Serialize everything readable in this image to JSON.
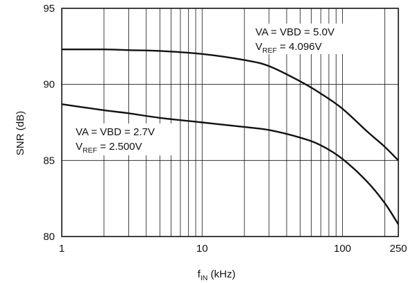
{
  "chart_data": {
    "type": "line",
    "title": "",
    "xlabel": {
      "main": "f",
      "sub": "IN",
      "rest": " (kHz)"
    },
    "ylabel": "SNR (dB)",
    "x_scale": "log",
    "xlim": [
      1,
      250
    ],
    "ylim": [
      80,
      95
    ],
    "x_ticks": [
      1,
      10,
      100,
      250
    ],
    "x_tick_labels": [
      "1",
      "10",
      "100",
      "250"
    ],
    "y_ticks": [
      80,
      85,
      90,
      95
    ],
    "y_tick_labels": [
      "80",
      "85",
      "90",
      "95"
    ],
    "grid": true,
    "series": [
      {
        "annotation": {
          "line1": "VA = VBD = 5.0V",
          "line2_main": "V",
          "line2_sub": "REF",
          "line2_rest": " = 4.096V"
        },
        "x": [
          1,
          2,
          3,
          5,
          10,
          20,
          30,
          50,
          70,
          100,
          150,
          200,
          250
        ],
        "y": [
          92.3,
          92.3,
          92.25,
          92.2,
          92.0,
          91.6,
          91.2,
          90.2,
          89.4,
          88.4,
          86.9,
          85.9,
          85.0
        ]
      },
      {
        "annotation": {
          "line1": "VA = VBD = 2.7V",
          "line2_main": "V",
          "line2_sub": "REF",
          "line2_rest": " = 2.500V"
        },
        "x": [
          1,
          2,
          3,
          5,
          10,
          20,
          30,
          50,
          70,
          100,
          150,
          200,
          250
        ],
        "y": [
          88.7,
          88.3,
          88.1,
          87.8,
          87.5,
          87.2,
          87.0,
          86.5,
          86.0,
          85.1,
          83.6,
          82.2,
          80.8
        ]
      }
    ]
  }
}
